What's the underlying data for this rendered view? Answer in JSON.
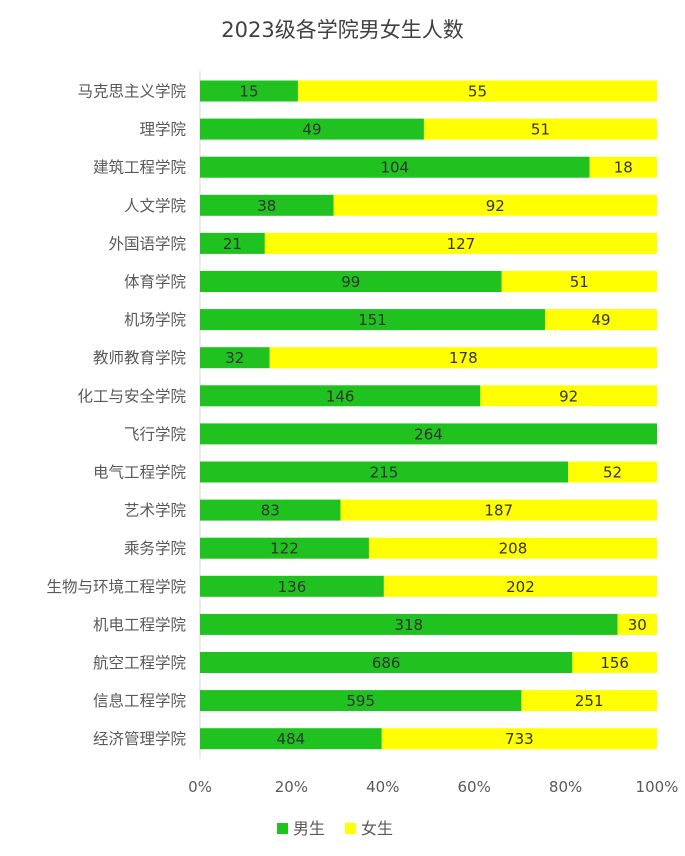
{
  "chart_data": {
    "type": "bar",
    "orientation": "horizontal",
    "stacked": "percent",
    "title": "2023级各学院男女生人数",
    "categories": [
      "马克思主义学院",
      "理学院",
      "建筑工程学院",
      "人文学院",
      "外国语学院",
      "体育学院",
      "机场学院",
      "教师教育学院",
      "化工与安全学院",
      "飞行学院",
      "电气工程学院",
      "艺术学院",
      "乘务学院",
      "生物与环境工程学院",
      "机电工程学院",
      "航空工程学院",
      "信息工程学院",
      "经济管理学院"
    ],
    "series": [
      {
        "name": "男生",
        "color": "#1fc21f",
        "values": [
          15,
          49,
          104,
          38,
          21,
          99,
          151,
          32,
          146,
          264,
          215,
          83,
          122,
          136,
          318,
          686,
          595,
          484
        ]
      },
      {
        "name": "女生",
        "color": "#ffff00",
        "values": [
          55,
          51,
          18,
          92,
          127,
          51,
          49,
          178,
          92,
          0,
          52,
          187,
          208,
          202,
          30,
          156,
          251,
          733
        ]
      }
    ],
    "xticks": [
      "0%",
      "20%",
      "40%",
      "60%",
      "80%",
      "100%"
    ],
    "xlim": [
      0,
      100
    ],
    "grid": false,
    "legend_position": "bottom"
  }
}
